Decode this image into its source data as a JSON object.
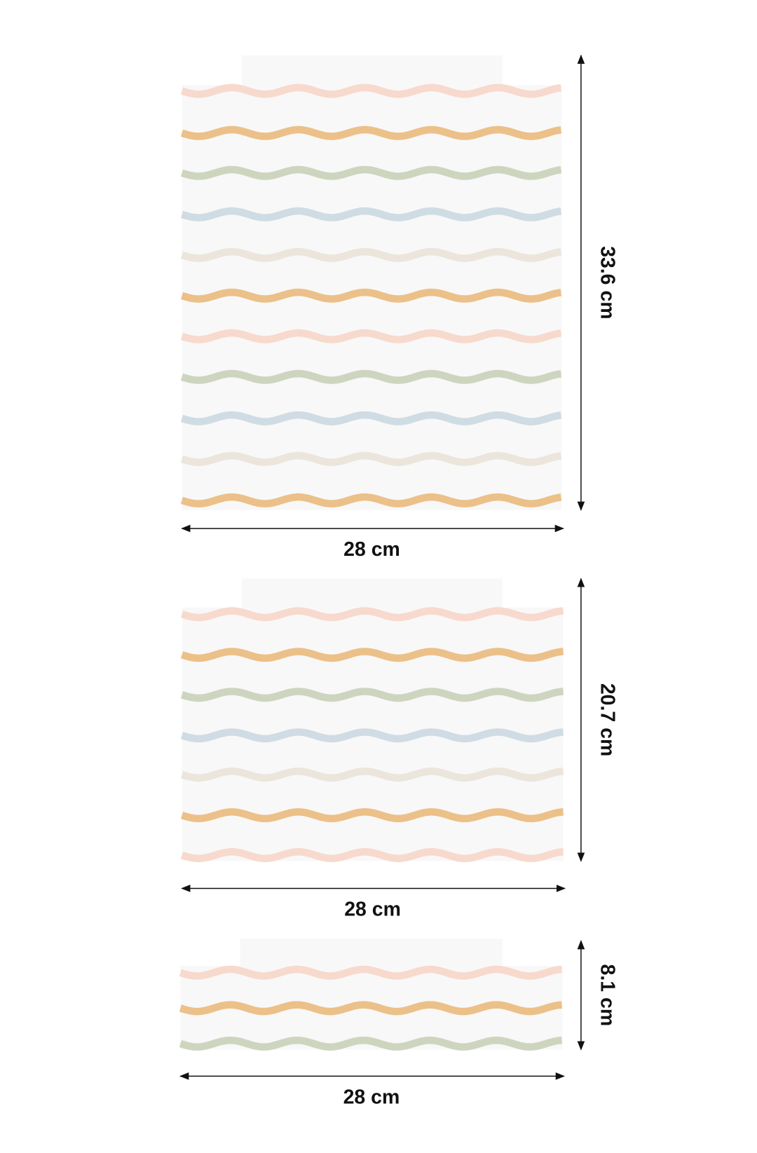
{
  "panels": [
    {
      "height_label": "33.6 cm",
      "width_label": "28 cm"
    },
    {
      "height_label": "20.7 cm",
      "width_label": "28 cm"
    },
    {
      "height_label": "8.1 cm",
      "width_label": "28 cm"
    }
  ]
}
